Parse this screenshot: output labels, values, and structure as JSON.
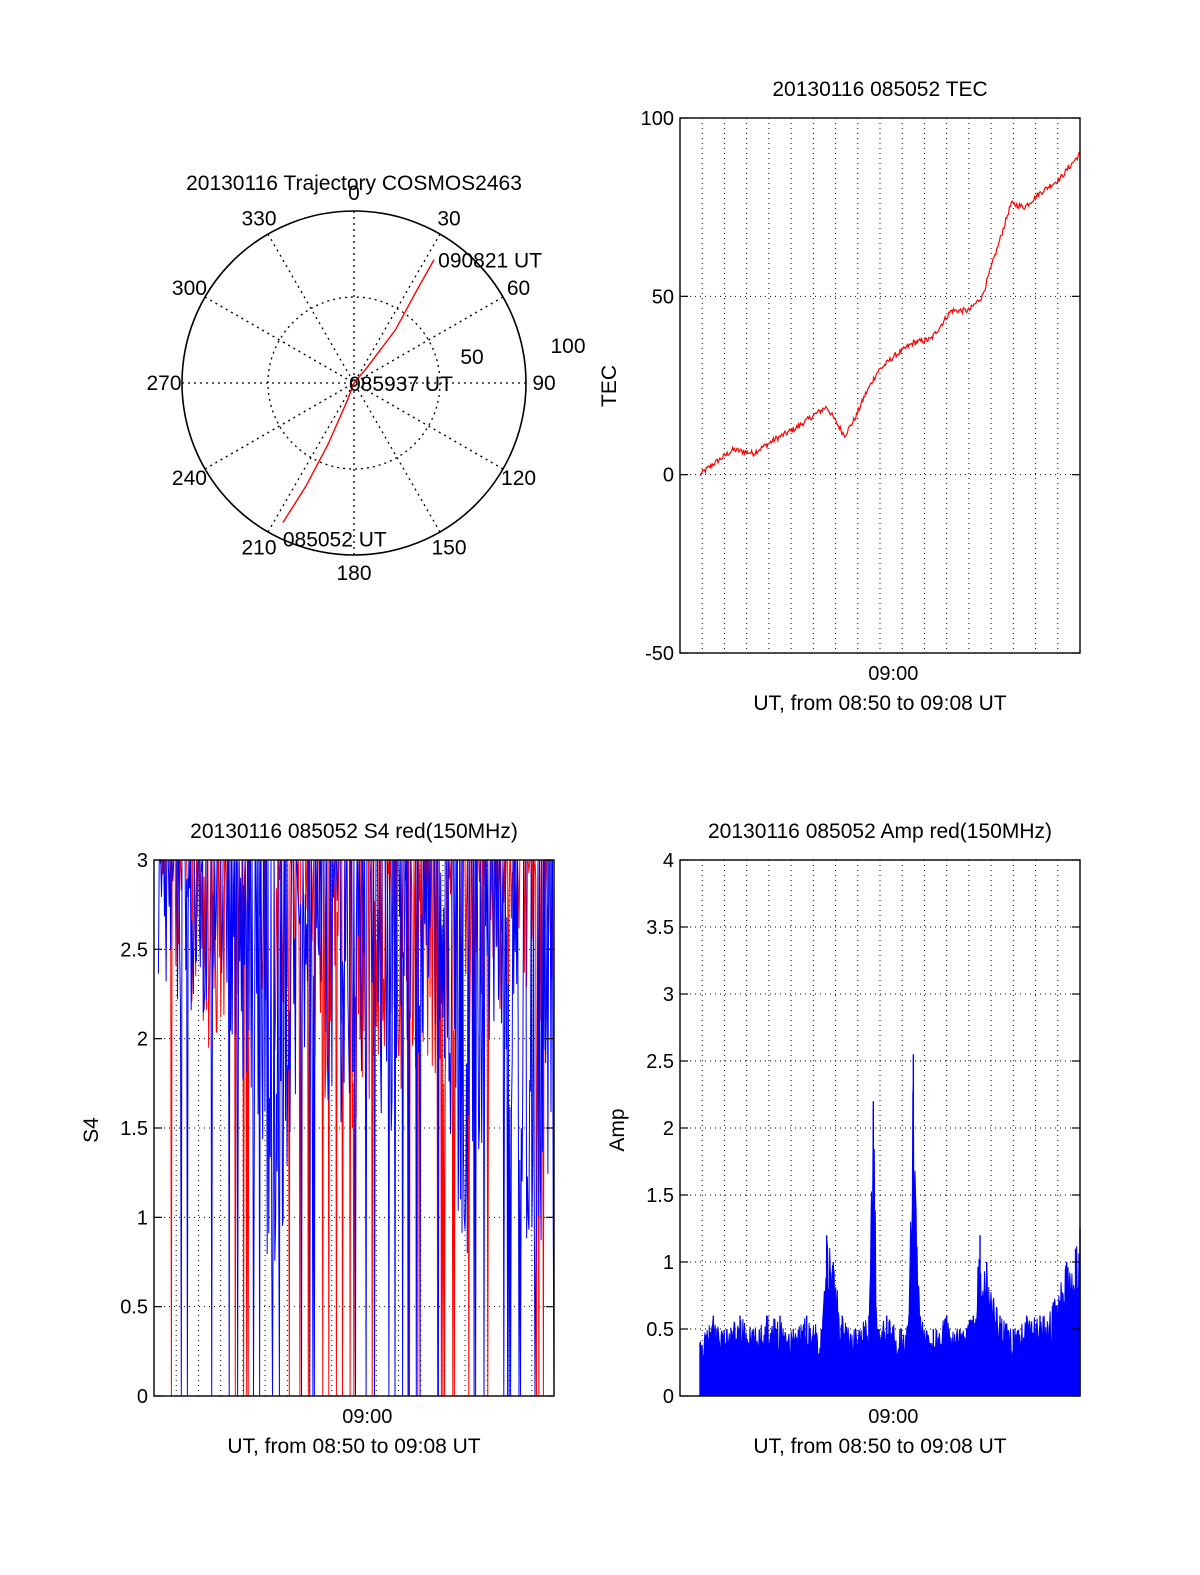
{
  "colors": {
    "red": "#ff0000",
    "blue": "#0000ff",
    "axes": "#000000",
    "grid": "#000000"
  },
  "chart_data": [
    {
      "type": "polar",
      "title": "20130116 Trajectory COSMOS2463",
      "azimuth_ticks": [
        "0",
        "30",
        "60",
        "90",
        "120",
        "150",
        "180",
        "210",
        "240",
        "270",
        "300",
        "330"
      ],
      "radius_ticks": [
        "50",
        "100"
      ],
      "trajectory": {
        "color": "red",
        "points": [
          {
            "az": 207,
            "el": 8
          },
          {
            "az": 205,
            "el": 30
          },
          {
            "az": 203,
            "el": 55
          },
          {
            "az": 201,
            "el": 80
          },
          {
            "az": 180,
            "el": 90
          },
          {
            "az": 40,
            "el": 80
          },
          {
            "az": 38,
            "el": 55
          },
          {
            "az": 34,
            "el": 30
          },
          {
            "az": 33,
            "el": 13
          }
        ],
        "annotations": [
          {
            "text": "085052 UT",
            "az": 207,
            "el": 8
          },
          {
            "text": "085937 UT",
            "az": 180,
            "el": 90
          },
          {
            "text": "090821 UT",
            "az": 33,
            "el": 13
          }
        ]
      }
    },
    {
      "type": "line",
      "title": "20130116 085052 TEC",
      "xlabel": "UT, from 08:50 to 09:08 UT",
      "ylabel": "TEC",
      "xlim": [
        0,
        18
      ],
      "ylim": [
        -50,
        100
      ],
      "yticks": [
        "100",
        "50",
        "0",
        "-50"
      ],
      "xticks": [
        "09:00"
      ],
      "xtick_positions": [
        9.6
      ],
      "grid": true,
      "series": [
        {
          "name": "TEC",
          "color": "red",
          "x": [
            0.9,
            1.5,
            2.4,
            3.3,
            4.3,
            5.2,
            6.1,
            6.6,
            6.9,
            7.4,
            7.9,
            8.3,
            8.9,
            9.6,
            10.5,
            11.3,
            12.2,
            13.0,
            13.6,
            14.3,
            14.9,
            15.5,
            16.2,
            17.1,
            18.0
          ],
          "values": [
            0,
            3,
            7,
            6,
            10,
            13,
            17,
            19,
            16,
            11,
            16,
            22,
            29,
            33,
            37,
            38,
            46,
            46,
            50,
            64,
            76,
            75,
            79,
            83,
            90
          ]
        }
      ]
    },
    {
      "type": "line",
      "title": "20130116 085052 S4 red(150MHz)",
      "xlabel": "UT, from 08:50 to 09:08 UT",
      "ylabel": "S4",
      "xlim": [
        0,
        18
      ],
      "ylim": [
        0,
        3
      ],
      "yticks": [
        "3",
        "2.5",
        "2",
        "1.5",
        "1",
        "0.5",
        "0"
      ],
      "xticks": [
        "09:00"
      ],
      "xtick_positions": [
        9.6
      ],
      "grid": true,
      "series": [
        {
          "name": "red",
          "color": "red",
          "x": [
            0.2,
            0.7,
            1.2,
            1.9,
            2.6,
            3.3,
            4.0,
            4.9,
            5.6,
            6.1,
            6.9,
            7.6,
            8.3,
            8.9,
            9.5,
            10.1,
            10.6,
            11.2,
            11.8,
            12.6,
            13.4,
            13.9,
            14.5,
            15.3,
            16.1,
            16.8,
            17.4,
            18.0
          ],
          "values": [
            3.0,
            2.8,
            2.9,
            2.7,
            2.4,
            2.8,
            2.6,
            2.8,
            2.4,
            2.5,
            2.8,
            2.2,
            2.5,
            2.1,
            2.0,
            2.3,
            2.6,
            2.2,
            2.4,
            2.1,
            2.4,
            2.8,
            2.5,
            2.7,
            2.4,
            2.9,
            2.6,
            2.8
          ]
        },
        {
          "name": "blue",
          "color": "blue",
          "x": [
            0.2,
            0.9,
            1.5,
            2.2,
            2.9,
            3.6,
            4.3,
            5.0,
            5.6,
            6.2,
            6.9,
            7.5,
            8.1,
            8.7,
            9.4,
            9.9,
            10.5,
            11.1,
            11.8,
            12.5,
            13.2,
            13.7,
            14.3,
            14.9,
            15.5,
            16.2,
            16.8,
            17.3,
            17.7,
            18.0
          ],
          "values": [
            2.9,
            2.8,
            2.6,
            2.7,
            2.9,
            2.5,
            2.2,
            1.3,
            1.1,
            2.2,
            2.4,
            2.0,
            2.3,
            1.9,
            2.2,
            2.4,
            2.0,
            2.2,
            2.5,
            2.6,
            2.2,
            1.4,
            1.3,
            2.2,
            2.5,
            2.0,
            1.4,
            1.2,
            1.6,
            1.1
          ]
        }
      ]
    },
    {
      "type": "bar",
      "title": "20130116 085052 Amp red(150MHz)",
      "xlabel": "UT, from 08:50 to 09:08 UT",
      "ylabel": "Amp",
      "xlim": [
        0,
        18
      ],
      "ylim": [
        0,
        4
      ],
      "yticks": [
        "4",
        "3.5",
        "3",
        "2.5",
        "2",
        "1.5",
        "1",
        "0.5",
        "0"
      ],
      "xticks": [
        "09:00"
      ],
      "xtick_positions": [
        9.6
      ],
      "grid": true,
      "series": [
        {
          "name": "Amp",
          "color": "blue",
          "x": [
            0.9,
            1.5,
            2.1,
            2.7,
            3.3,
            3.9,
            4.5,
            5.1,
            5.7,
            6.4,
            6.6,
            6.9,
            7.3,
            7.9,
            8.5,
            8.7,
            8.9,
            9.3,
            9.9,
            10.3,
            10.5,
            10.8,
            11.4,
            12.0,
            12.6,
            13.2,
            13.5,
            13.8,
            14.4,
            15.0,
            15.6,
            16.2,
            16.8,
            17.4,
            17.8,
            18.0
          ],
          "values": [
            0.4,
            0.6,
            0.5,
            0.6,
            0.5,
            0.6,
            0.6,
            0.5,
            0.6,
            0.5,
            1.2,
            1.0,
            0.6,
            0.5,
            0.6,
            2.2,
            0.5,
            0.6,
            0.5,
            0.6,
            2.55,
            0.6,
            0.5,
            0.6,
            0.5,
            0.6,
            1.2,
            1.0,
            0.6,
            0.5,
            0.6,
            0.6,
            0.7,
            1.0,
            1.1,
            1.25
          ]
        }
      ]
    }
  ]
}
